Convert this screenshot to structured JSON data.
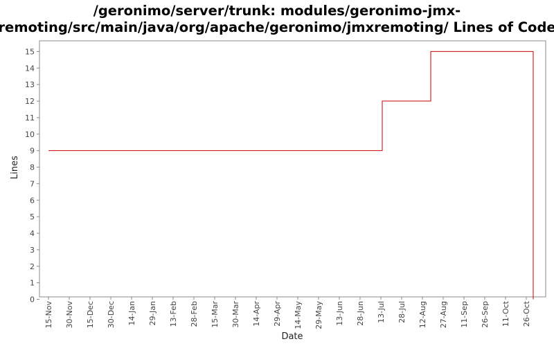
{
  "chart_data": {
    "type": "line",
    "title_lines": [
      "/geronimo/server/trunk: modules/geronimo-jmx-",
      "remoting/src/main/java/org/apache/geronimo/jmxremoting/ Lines of Code"
    ],
    "xlabel": "Date",
    "ylabel": "Lines",
    "ylim": [
      0,
      15.5
    ],
    "yticks": [
      0,
      1,
      2,
      3,
      4,
      5,
      6,
      7,
      8,
      9,
      10,
      11,
      12,
      13,
      14,
      15
    ],
    "xticks": [
      "15-Nov",
      "30-Nov",
      "15-Dec",
      "30-Dec",
      "14-Jan",
      "29-Jan",
      "13-Feb",
      "28-Feb",
      "15-Mar",
      "30-Mar",
      "14-Apr",
      "29-Apr",
      "14-May",
      "29-May",
      "13-Jun",
      "28-Jun",
      "13-Jul",
      "28-Jul",
      "12-Aug",
      "27-Aug",
      "11-Sep",
      "26-Sep",
      "11-Oct",
      "26-Oct"
    ],
    "grid": false,
    "legend": "none",
    "line_color": "#cc0000",
    "step": true,
    "series": [
      {
        "points": [
          {
            "x": "15-Nov",
            "y": 9
          },
          {
            "x": "14-Jul",
            "y": 12
          },
          {
            "x": "18-Aug",
            "y": 15
          },
          {
            "x": "31-Oct",
            "y": 0
          }
        ]
      }
    ]
  }
}
